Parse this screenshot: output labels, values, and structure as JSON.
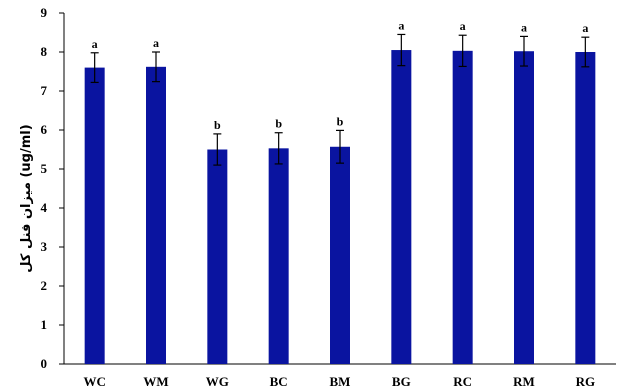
{
  "chart_data": {
    "type": "bar",
    "categories": [
      "WC",
      "WM",
      "WG",
      "BC",
      "BM",
      "BG",
      "RC",
      "RM",
      "RG"
    ],
    "values": [
      7.6,
      7.62,
      5.5,
      5.53,
      5.57,
      8.05,
      8.03,
      8.02,
      8.0
    ],
    "errors": [
      0.38,
      0.38,
      0.4,
      0.4,
      0.42,
      0.4,
      0.4,
      0.38,
      0.38
    ],
    "significance": [
      "a",
      "a",
      "b",
      "b",
      "b",
      "a",
      "a",
      "a",
      "a"
    ],
    "ylabel": "میزان فنل کل (ug/ml)",
    "ylim": [
      0,
      9
    ],
    "yticks": [
      0,
      1,
      2,
      3,
      4,
      5,
      6,
      7,
      8,
      9
    ],
    "grid": false,
    "bar_color": "#0a14a0",
    "error_color": "#000000"
  }
}
